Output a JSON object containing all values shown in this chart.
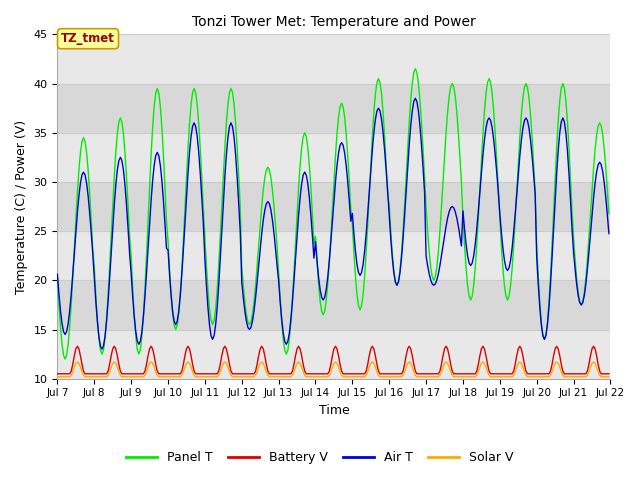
{
  "title": "Tonzi Tower Met: Temperature and Power",
  "xlabel": "Time",
  "ylabel": "Temperature (C) / Power (V)",
  "ylim": [
    10,
    45
  ],
  "xlim_days": [
    7,
    22
  ],
  "x_ticks_labels": [
    "Jul 7",
    "Jul 8",
    "Jul 9",
    "Jul 10",
    "Jul 11",
    "Jul 12",
    "Jul 13",
    "Jul 14",
    "Jul 15",
    "Jul 16",
    "Jul 17",
    "Jul 18",
    "Jul 19",
    "Jul 20",
    "Jul 21",
    "Jul 22"
  ],
  "legend_labels": [
    "Panel T",
    "Battery V",
    "Air T",
    "Solar V"
  ],
  "legend_colors": [
    "#00ee00",
    "#dd0000",
    "#0000dd",
    "#ffaa00"
  ],
  "annotation_text": "TZ_tmet",
  "annotation_bg": "#ffff99",
  "annotation_border": "#cc9900",
  "annotation_text_color": "#990000",
  "band_colors": [
    "#e8e8e8",
    "#d8d8d8"
  ],
  "grid_line_color": "#cccccc",
  "fig_bg": "#ffffff",
  "panel_t_color": "#00ee00",
  "battery_v_color": "#dd0000",
  "air_t_color": "#0000dd",
  "solar_v_color": "#ffaa00",
  "day_peaks_panel": [
    34.5,
    36.5,
    39.5,
    39.5,
    39.5,
    31.5,
    35.0,
    38.0,
    40.5,
    41.5,
    40.0,
    40.5,
    40.0,
    40.0,
    36.0
  ],
  "day_mins_panel": [
    12.0,
    12.5,
    12.5,
    15.0,
    15.5,
    15.5,
    12.5,
    16.5,
    17.0,
    19.5,
    20.0,
    18.0,
    18.0,
    14.0,
    17.5
  ],
  "day_peaks_air": [
    31.0,
    32.5,
    33.0,
    36.0,
    36.0,
    28.0,
    31.0,
    34.0,
    37.5,
    38.5,
    27.5,
    36.5,
    36.5,
    36.5,
    32.0
  ],
  "day_mins_air": [
    14.5,
    13.0,
    13.5,
    15.5,
    14.0,
    15.0,
    13.5,
    18.0,
    20.5,
    19.5,
    19.5,
    21.5,
    21.0,
    14.0,
    17.5
  ],
  "batt_base": 10.5,
  "batt_peak": 2.8,
  "solar_base": 10.2,
  "solar_peak": 1.5
}
